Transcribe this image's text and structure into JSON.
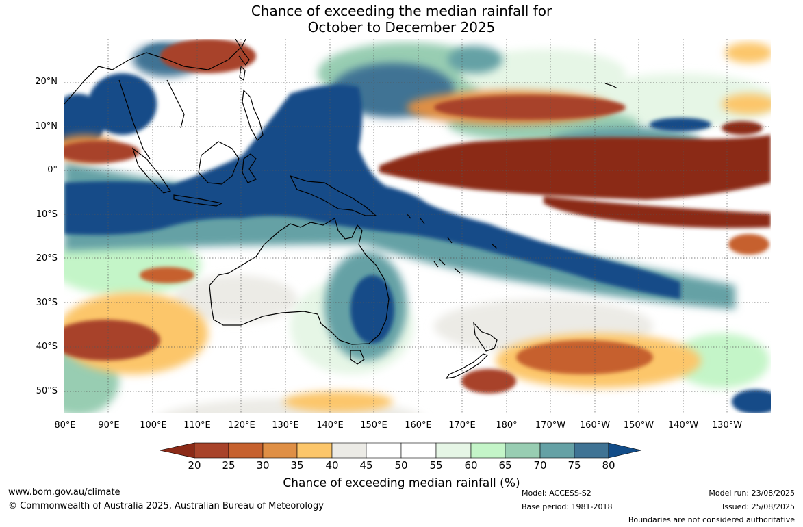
{
  "title": {
    "line1": "Chance of exceeding the median rainfall for",
    "line2": "October to December 2025"
  },
  "map": {
    "lat_labels": [
      "20°N",
      "10°N",
      "0°",
      "10°S",
      "20°S",
      "30°S",
      "40°S",
      "50°S"
    ],
    "lon_labels": [
      "80°E",
      "90°E",
      "100°E",
      "110°E",
      "120°E",
      "130°E",
      "140°E",
      "150°E",
      "160°E",
      "170°E",
      "180°",
      "170°W",
      "160°W",
      "150°W",
      "140°W",
      "130°W"
    ],
    "colors": {
      "below_20": "#8b2a17",
      "p20_25": "#a8432a",
      "p25_30": "#c6612e",
      "p30_35": "#df8f45",
      "p35_40": "#fcc66a",
      "p40_45": "#ecebe6",
      "p45_55": "#ffffff",
      "p55_60": "#e6f6e6",
      "p60_65": "#c4f5c8",
      "p65_70": "#98cdb2",
      "p70_75": "#65a1a5",
      "p75_80": "#3f7394",
      "above_80": "#124c88",
      "land_outline": "#000000"
    },
    "regions_described": [
      "Wet (above 80%) band across Maritime Continent, Indian Ocean near equator and northwest of Australia",
      "Wet band southeast from Papua New Guinea toward French Polynesia",
      "Dry (below 20%) band along equatorial central and eastern Pacific",
      "Dry band north near 10°N in central Pacific",
      "Dry patches south of Australia, southern Indian Ocean and east of New Zealand",
      "Dry patch over southern China / Taiwan"
    ]
  },
  "colorbar": {
    "ticks": [
      "20",
      "25",
      "30",
      "35",
      "40",
      "45",
      "50",
      "55",
      "60",
      "65",
      "70",
      "75",
      "80"
    ],
    "label": "Chance of exceeding median rainfall (%)"
  },
  "footer": {
    "website": "www.bom.gov.au/climate",
    "copyright": "© Commonwealth of Australia 2025, Australian Bureau of Meteorology",
    "model": "Model: ACCESS-S2",
    "base_period": "Base period: 1981-2018",
    "model_run": "Model run: 23/08/2025",
    "issued": "Issued: 25/08/2025",
    "boundaries": "Boundaries are not considered authoritative"
  }
}
